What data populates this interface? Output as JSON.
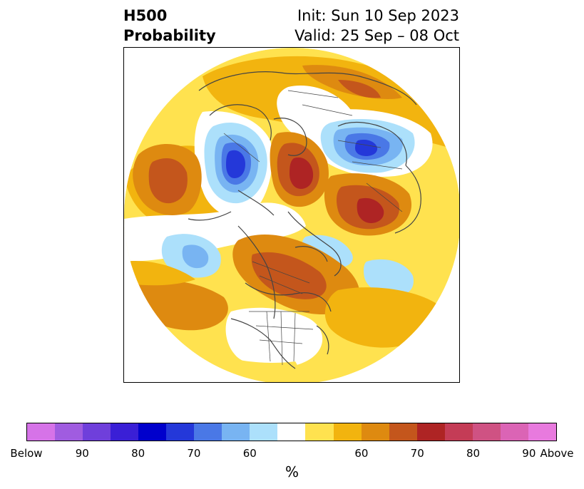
{
  "title": {
    "left_line1": "H500",
    "left_line2": "Probability",
    "right_line1": "Init: Sun 10 Sep 2023",
    "right_line2": "Valid: 25 Sep – 08 Oct"
  },
  "map": {
    "projection": "north-polar-stereographic",
    "features": [
      "coastlines",
      "country-borders",
      "us-state-borders",
      "canadian-province-borders"
    ]
  },
  "colorbar": {
    "colors": [
      "#d673e8",
      "#a05ce0",
      "#6f3fdb",
      "#3a1fd6",
      "#0000cc",
      "#2438d9",
      "#4a78e6",
      "#78b4f2",
      "#ace0fb",
      "#ffffff",
      "#ffe24f",
      "#f2b40f",
      "#de8a10",
      "#c4561c",
      "#ae2424",
      "#c43c56",
      "#cf5283",
      "#db64b5",
      "#e87ade"
    ],
    "labels": [
      "Below",
      "90",
      "80",
      "70",
      "60",
      "60",
      "70",
      "80",
      "90",
      "Above"
    ],
    "unit": "%"
  }
}
